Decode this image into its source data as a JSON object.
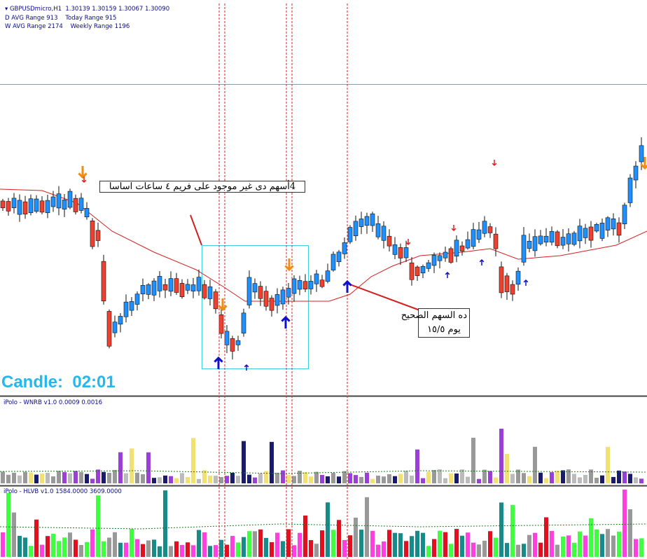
{
  "header": {
    "title": "GBPUSDmicro,H1  1.30139 1.30159 1.30067 1.30090",
    "d_avg": "D AVG Range 913",
    "today": "Today Range 915",
    "w_avg": "W AVG Range 2174",
    "weekly": "Weekly Range 1196"
  },
  "annotations": [
    {
      "text": "4أسهم دى غير موجود على فريم ٤ ساعات اساسا"
    },
    {
      "lines": [
        "ده السهم الصحيح",
        "يوم ١٥/٥"
      ]
    }
  ],
  "candle_timer": "Candle:  02:01",
  "indicators": [
    "iPolo - WNRB v1.0 0.0009 0.0016",
    "iPolo - HLVB v1.0 1584.0000 3609.0000"
  ]
}
